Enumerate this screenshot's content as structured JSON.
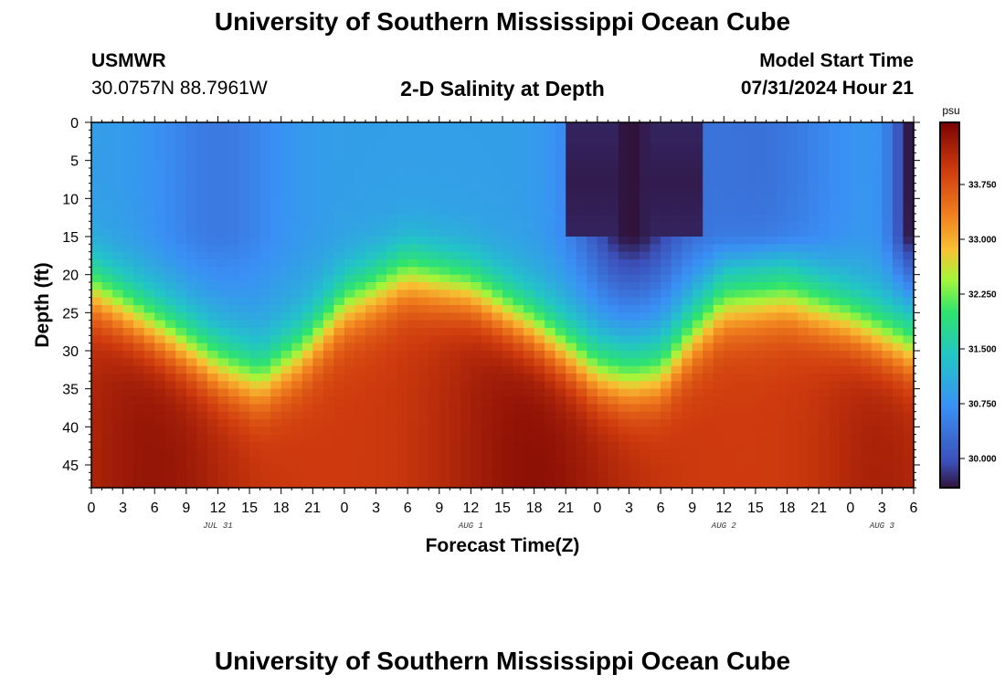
{
  "header": {
    "title": "University of Southern Mississippi Ocean Cube",
    "station": "USMWR",
    "coords": "30.0757N  88.7961W",
    "subtitle": "2-D Salinity at Depth",
    "start_label": "Model Start Time",
    "start_value": "07/31/2024 Hour 21"
  },
  "footer": {
    "title": "University of Southern Mississippi Ocean Cube"
  },
  "chart_data": {
    "type": "heatmap",
    "title": "2-D Salinity at Depth",
    "xlabel": "Forecast Time(Z)",
    "ylabel": "Depth (ft)",
    "x_range_hours": [
      0,
      78
    ],
    "y_range_ft": [
      0,
      48
    ],
    "x_ticks": [
      {
        "h": 0,
        "label": "0"
      },
      {
        "h": 3,
        "label": "3"
      },
      {
        "h": 6,
        "label": "6"
      },
      {
        "h": 9,
        "label": "9"
      },
      {
        "h": 12,
        "label": "12"
      },
      {
        "h": 15,
        "label": "15"
      },
      {
        "h": 18,
        "label": "18"
      },
      {
        "h": 21,
        "label": "21"
      },
      {
        "h": 24,
        "label": "0"
      },
      {
        "h": 27,
        "label": "3"
      },
      {
        "h": 30,
        "label": "6"
      },
      {
        "h": 33,
        "label": "9"
      },
      {
        "h": 36,
        "label": "12"
      },
      {
        "h": 39,
        "label": "15"
      },
      {
        "h": 42,
        "label": "18"
      },
      {
        "h": 45,
        "label": "21"
      },
      {
        "h": 48,
        "label": "0"
      },
      {
        "h": 51,
        "label": "3"
      },
      {
        "h": 54,
        "label": "6"
      },
      {
        "h": 57,
        "label": "9"
      },
      {
        "h": 60,
        "label": "12"
      },
      {
        "h": 63,
        "label": "15"
      },
      {
        "h": 66,
        "label": "18"
      },
      {
        "h": 69,
        "label": "21"
      },
      {
        "h": 72,
        "label": "0"
      },
      {
        "h": 75,
        "label": "3"
      },
      {
        "h": 78,
        "label": "6"
      }
    ],
    "y_ticks": [
      0,
      5,
      10,
      15,
      20,
      25,
      30,
      35,
      40,
      45
    ],
    "date_labels": [
      {
        "h": 12,
        "label": "JUL 31"
      },
      {
        "h": 36,
        "label": "AUG 1"
      },
      {
        "h": 60,
        "label": "AUG 2"
      },
      {
        "h": 75,
        "label": "AUG 3"
      }
    ],
    "colorbar": {
      "unit": "psu",
      "range": [
        29.6,
        34.6
      ],
      "ticks": [
        "30.000",
        "30.750",
        "31.500",
        "32.250",
        "33.000",
        "33.750"
      ]
    },
    "halocline_depth_ft": [
      {
        "h": 0,
        "d": 22
      },
      {
        "h": 6,
        "d": 27
      },
      {
        "h": 12,
        "d": 32
      },
      {
        "h": 16,
        "d": 34
      },
      {
        "h": 20,
        "d": 30
      },
      {
        "h": 24,
        "d": 24
      },
      {
        "h": 30,
        "d": 20
      },
      {
        "h": 36,
        "d": 22
      },
      {
        "h": 42,
        "d": 27
      },
      {
        "h": 48,
        "d": 33
      },
      {
        "h": 51,
        "d": 34
      },
      {
        "h": 54,
        "d": 33
      },
      {
        "h": 57,
        "d": 28
      },
      {
        "h": 60,
        "d": 24
      },
      {
        "h": 66,
        "d": 23
      },
      {
        "h": 72,
        "d": 26
      },
      {
        "h": 78,
        "d": 30
      }
    ]
  }
}
